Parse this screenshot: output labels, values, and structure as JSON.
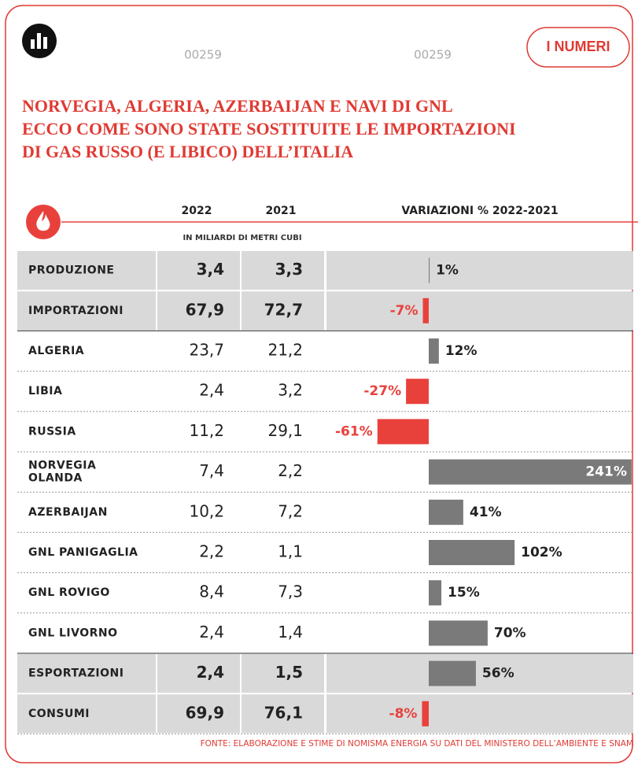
{
  "header": {
    "code_left": "00259",
    "code_right": "00259",
    "badge": "I NUMERI",
    "title_lines": [
      "NORVEGIA, ALGERIA, AZERBAIJAN E NAVI DI GNL",
      "ECCO COME SONO STATE SOSTITUITE LE IMPORTAZIONI",
      "DI GAS RUSSO (E LIBICO) DELL’ITALIA"
    ]
  },
  "table": {
    "columns": [
      "2022",
      "2021",
      "VARIAZIONI % 2022-2021"
    ],
    "unit": "IN MILIARDI DI METRI CUBI",
    "rows": [
      {
        "label": [
          "PRODUZIONE"
        ],
        "v2022": "3,4",
        "v2021": "3,3",
        "variation": 1,
        "variation_label": "1%",
        "highlight": true
      },
      {
        "label": [
          "IMPORTAZIONI"
        ],
        "v2022": "67,9",
        "v2021": "72,7",
        "variation": -7,
        "variation_label": "-7%",
        "highlight": true
      },
      {
        "label": [
          "ALGERIA"
        ],
        "v2022": "23,7",
        "v2021": "21,2",
        "variation": 12,
        "variation_label": "12%",
        "highlight": false
      },
      {
        "label": [
          "LIBIA"
        ],
        "v2022": "2,4",
        "v2021": "3,2",
        "variation": -27,
        "variation_label": "-27%",
        "highlight": false
      },
      {
        "label": [
          "RUSSIA"
        ],
        "v2022": "11,2",
        "v2021": "29,1",
        "variation": -61,
        "variation_label": "-61%",
        "highlight": false
      },
      {
        "label": [
          "NORVEGIA",
          "OLANDA"
        ],
        "v2022": "7,4",
        "v2021": "2,2",
        "variation": 241,
        "variation_label": "241%",
        "highlight": false
      },
      {
        "label": [
          "AZERBAIJAN"
        ],
        "v2022": "10,2",
        "v2021": "7,2",
        "variation": 41,
        "variation_label": "41%",
        "highlight": false
      },
      {
        "label": [
          "GNL PANIGAGLIA"
        ],
        "v2022": "2,2",
        "v2021": "1,1",
        "variation": 102,
        "variation_label": "102%",
        "highlight": false
      },
      {
        "label": [
          "GNL ROVIGO"
        ],
        "v2022": "8,4",
        "v2021": "7,3",
        "variation": 15,
        "variation_label": "15%",
        "highlight": false
      },
      {
        "label": [
          "GNL LIVORNO"
        ],
        "v2022": "2,4",
        "v2021": "1,4",
        "variation": 70,
        "variation_label": "70%",
        "highlight": false
      },
      {
        "label": [
          "ESPORTAZIONI"
        ],
        "v2022": "2,4",
        "v2021": "1,5",
        "variation": 56,
        "variation_label": "56%",
        "highlight": true
      },
      {
        "label": [
          "CONSUMI"
        ],
        "v2022": "69,9",
        "v2021": "76,1",
        "variation": -8,
        "variation_label": "-8%",
        "highlight": true
      }
    ]
  },
  "source": "FONTE: ELABORAZIONE E STIME DI NOMISMA ENERGIA SU DATI DEL MINISTERO DELL’AMBIENTE E SNAM"
}
